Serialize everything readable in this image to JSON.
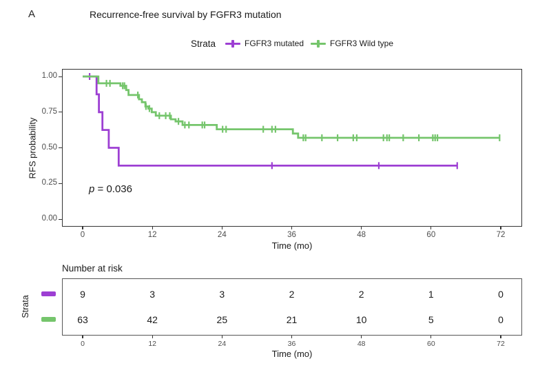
{
  "panel_label": "A",
  "title": "Recurrence-free survival by FGFR3 mutation",
  "legend": {
    "title": "Strata",
    "items": [
      {
        "label": "FGFR3 mutated",
        "color": "#9d3fd3",
        "marker": "plus-censor-icon"
      },
      {
        "label": "FGFR3 Wild type",
        "color": "#75c56c",
        "marker": "plus-censor-icon"
      }
    ]
  },
  "pvalue": {
    "symbol": "p",
    "rest": " = 0.036"
  },
  "chart_data": {
    "type": "line",
    "subtype": "kaplan-meier-step",
    "title": "Recurrence-free survival by FGFR3 mutation",
    "xlabel": "Time (mo)",
    "ylabel": "RFS probability",
    "xlim": [
      0,
      72
    ],
    "ylim": [
      0,
      1
    ],
    "x_ticks": [
      0,
      12,
      24,
      36,
      48,
      60,
      72
    ],
    "y_ticks": [
      "1.00",
      "0.75",
      "0.50",
      "0.25",
      "0.00"
    ],
    "y_tick_values": [
      1.0,
      0.75,
      0.5,
      0.25,
      0.0
    ],
    "grid": false,
    "legend_position": "top",
    "pvalue_text": "p = 0.036",
    "series": [
      {
        "name": "FGFR3 mutated",
        "color": "#9d3fd3",
        "steps": [
          [
            0,
            1.0
          ],
          [
            2.4,
            1.0
          ],
          [
            2.4,
            0.875
          ],
          [
            2.8,
            0.875
          ],
          [
            2.8,
            0.75
          ],
          [
            3.4,
            0.75
          ],
          [
            3.4,
            0.625
          ],
          [
            4.5,
            0.625
          ],
          [
            4.5,
            0.5
          ],
          [
            6.2,
            0.5
          ],
          [
            6.2,
            0.375
          ],
          [
            64.5,
            0.375
          ]
        ],
        "censors": [
          [
            1.2,
            1.0
          ],
          [
            32.6,
            0.375
          ],
          [
            51.0,
            0.375
          ],
          [
            64.5,
            0.375
          ]
        ]
      },
      {
        "name": "FGFR3 Wild type",
        "color": "#75c56c",
        "steps": [
          [
            0,
            1.0
          ],
          [
            2.7,
            1.0
          ],
          [
            2.7,
            0.952
          ],
          [
            6.5,
            0.952
          ],
          [
            6.5,
            0.935
          ],
          [
            7.5,
            0.935
          ],
          [
            7.5,
            0.905
          ],
          [
            7.9,
            0.905
          ],
          [
            7.9,
            0.87
          ],
          [
            9.7,
            0.87
          ],
          [
            9.7,
            0.84
          ],
          [
            10.2,
            0.84
          ],
          [
            10.2,
            0.82
          ],
          [
            10.8,
            0.82
          ],
          [
            10.8,
            0.79
          ],
          [
            11.3,
            0.79
          ],
          [
            11.3,
            0.775
          ],
          [
            11.9,
            0.775
          ],
          [
            11.9,
            0.75
          ],
          [
            12.6,
            0.75
          ],
          [
            12.6,
            0.725
          ],
          [
            15.2,
            0.725
          ],
          [
            15.2,
            0.7
          ],
          [
            16.0,
            0.7
          ],
          [
            16.0,
            0.685
          ],
          [
            17.2,
            0.685
          ],
          [
            17.2,
            0.66
          ],
          [
            23.1,
            0.66
          ],
          [
            23.1,
            0.63
          ],
          [
            36.2,
            0.63
          ],
          [
            36.2,
            0.6
          ],
          [
            37.1,
            0.6
          ],
          [
            37.1,
            0.57
          ],
          [
            71.8,
            0.57
          ]
        ],
        "censors": [
          [
            4.1,
            0.952
          ],
          [
            4.7,
            0.952
          ],
          [
            6.9,
            0.935
          ],
          [
            7.2,
            0.935
          ],
          [
            9.5,
            0.87
          ],
          [
            10.9,
            0.79
          ],
          [
            11.5,
            0.775
          ],
          [
            13.2,
            0.725
          ],
          [
            14.3,
            0.725
          ],
          [
            15.0,
            0.725
          ],
          [
            16.5,
            0.685
          ],
          [
            17.6,
            0.66
          ],
          [
            18.3,
            0.66
          ],
          [
            20.6,
            0.66
          ],
          [
            21.0,
            0.66
          ],
          [
            24.1,
            0.63
          ],
          [
            24.7,
            0.63
          ],
          [
            31.1,
            0.63
          ],
          [
            32.6,
            0.63
          ],
          [
            33.2,
            0.63
          ],
          [
            38.0,
            0.57
          ],
          [
            38.4,
            0.57
          ],
          [
            41.2,
            0.57
          ],
          [
            43.9,
            0.57
          ],
          [
            46.6,
            0.57
          ],
          [
            47.2,
            0.57
          ],
          [
            51.8,
            0.57
          ],
          [
            52.4,
            0.57
          ],
          [
            52.8,
            0.57
          ],
          [
            55.2,
            0.57
          ],
          [
            57.9,
            0.57
          ],
          [
            60.3,
            0.57
          ],
          [
            60.7,
            0.57
          ],
          [
            61.1,
            0.57
          ],
          [
            71.8,
            0.57
          ]
        ]
      }
    ]
  },
  "risk_table": {
    "title": "Number at risk",
    "axis_label": "Strata",
    "xlabel": "Time (mo)",
    "x_ticks": [
      0,
      12,
      24,
      36,
      48,
      60,
      72
    ],
    "rows": [
      {
        "name": "FGFR3 mutated",
        "color": "#9d3fd3",
        "counts": [
          9,
          3,
          3,
          2,
          2,
          1,
          0
        ]
      },
      {
        "name": "FGFR3 Wild type",
        "color": "#75c56c",
        "counts": [
          63,
          42,
          25,
          21,
          10,
          5,
          0
        ]
      }
    ]
  }
}
